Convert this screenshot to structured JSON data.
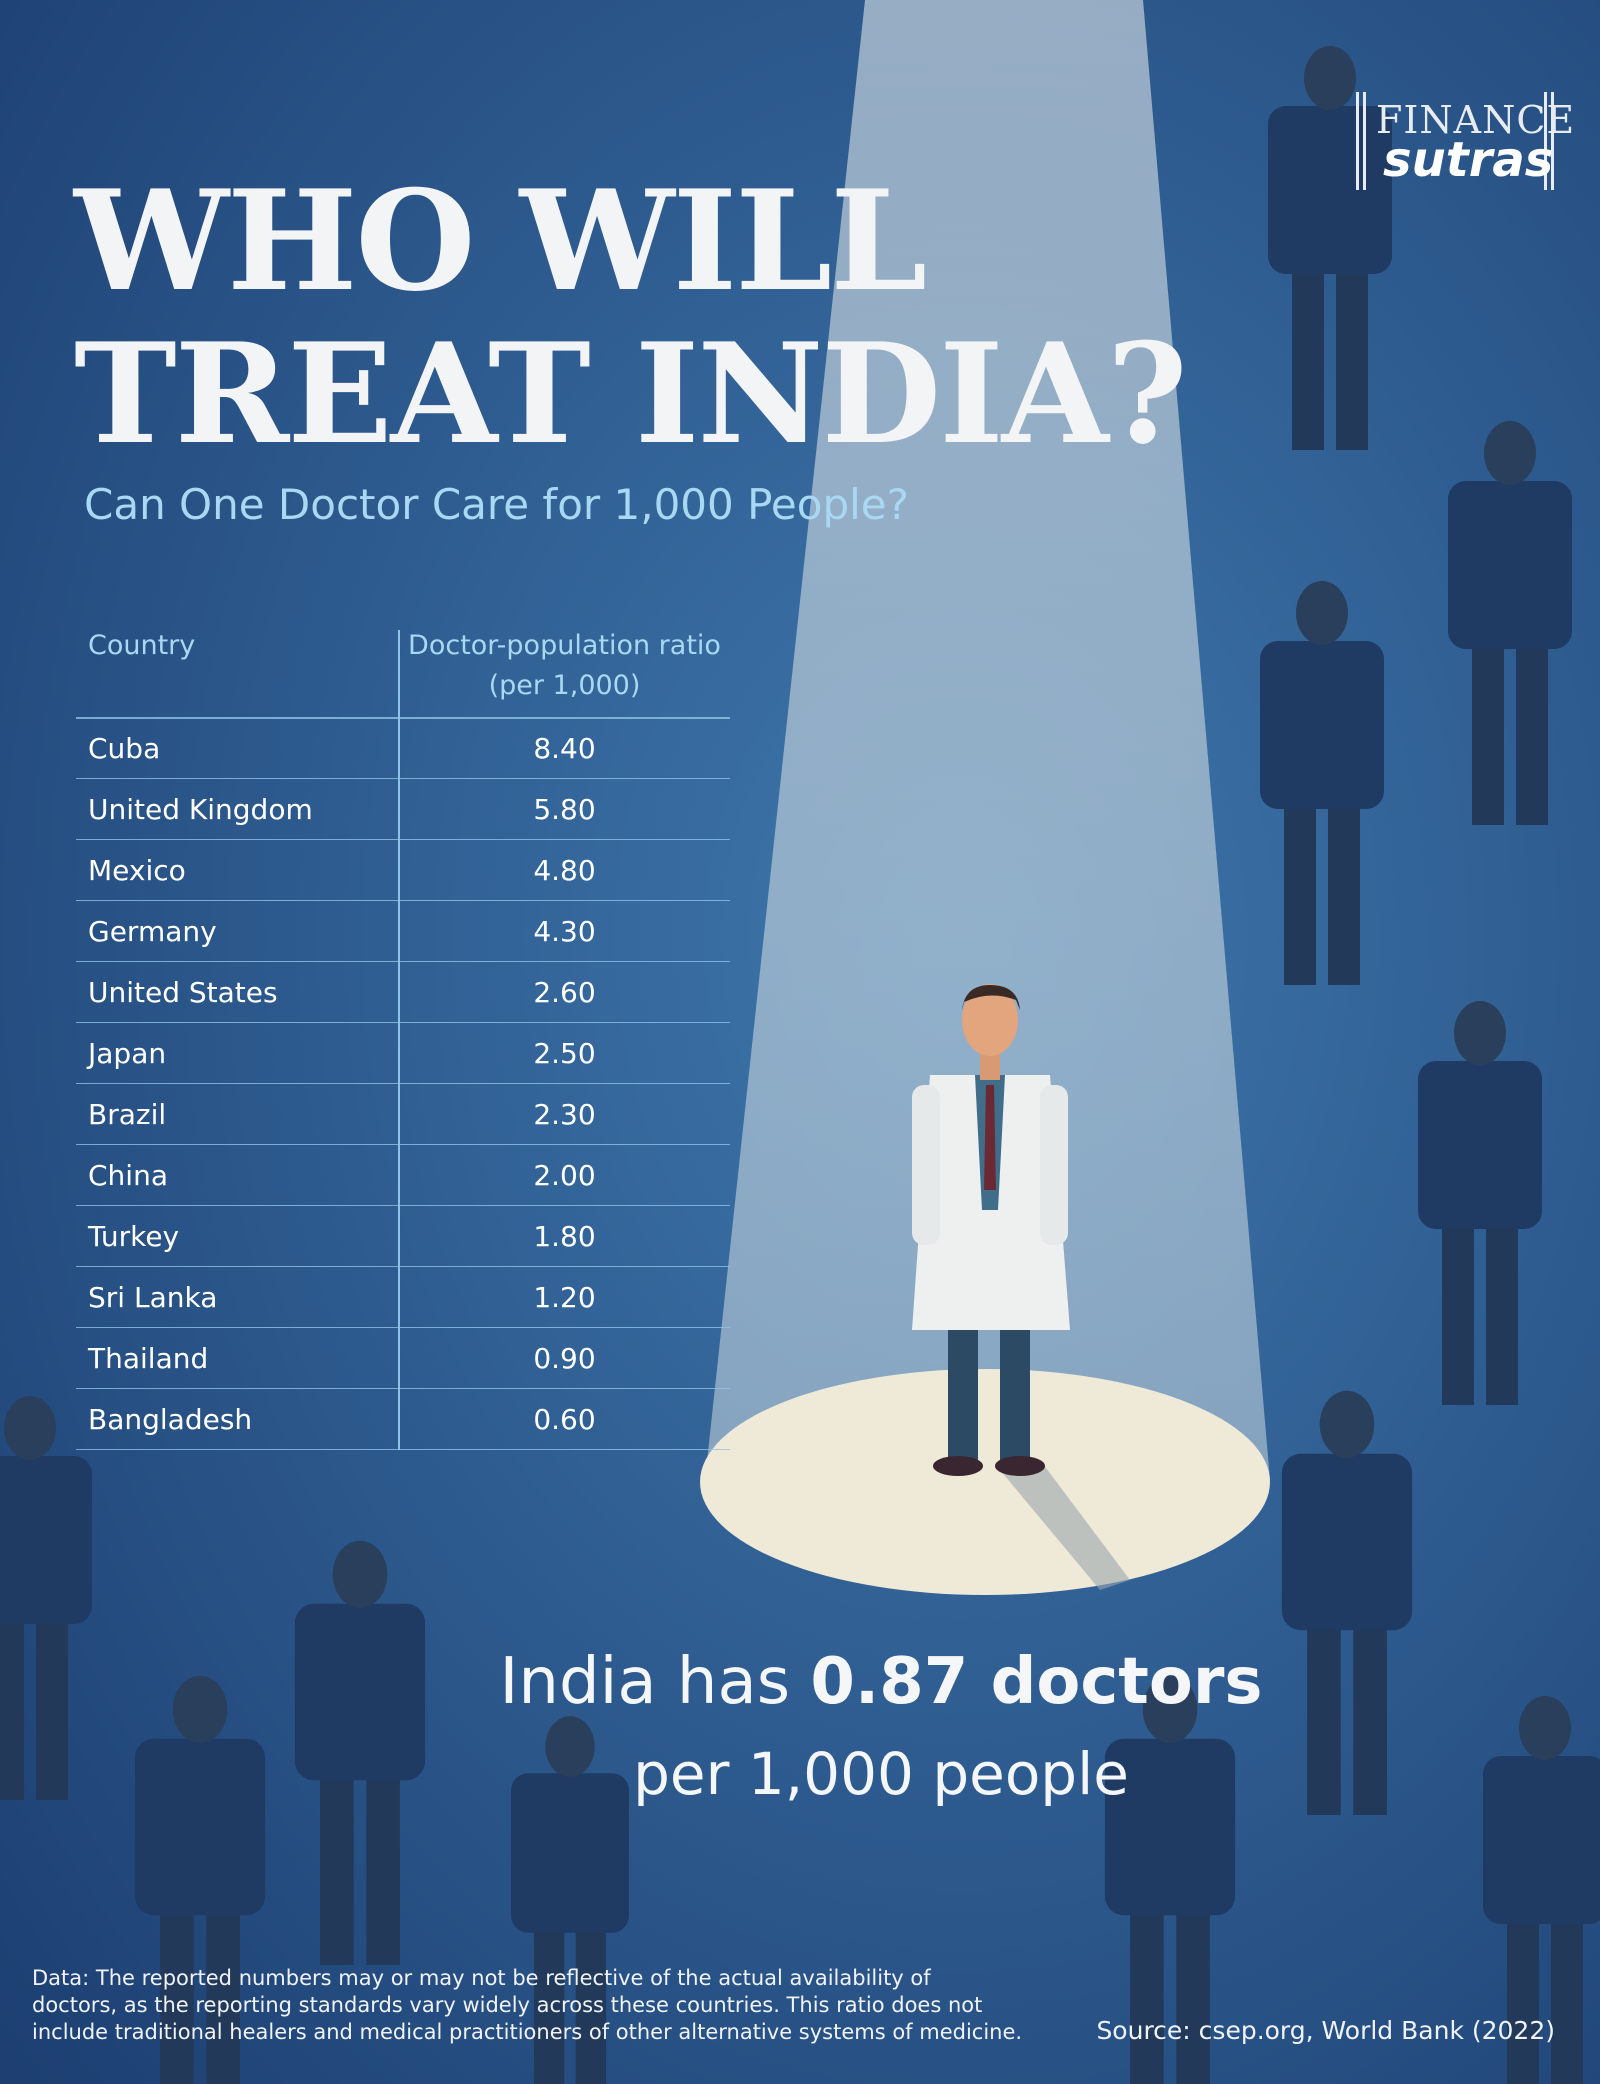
{
  "logo": {
    "line1": "FINANCE",
    "line2": "sutras"
  },
  "header": {
    "title_lines": [
      "WHO WILL",
      "TREAT INDIA?"
    ],
    "subtitle": "Can One Doctor Care for 1,000 People?"
  },
  "table": {
    "headers": {
      "country": "Country",
      "ratio_line1": "Doctor-population ratio",
      "ratio_line2": "(per 1,000)"
    },
    "rows": [
      [
        "Cuba",
        "8.40"
      ],
      [
        "United Kingdom",
        "5.80"
      ],
      [
        "Mexico",
        "4.80"
      ],
      [
        "Germany",
        "4.30"
      ],
      [
        "United States",
        "2.60"
      ],
      [
        "Japan",
        "2.50"
      ],
      [
        "Brazil",
        "2.30"
      ],
      [
        "China",
        "2.00"
      ],
      [
        "Turkey",
        "1.80"
      ],
      [
        "Sri Lanka",
        "1.20"
      ],
      [
        "Thailand",
        "0.90"
      ],
      [
        "Bangladesh",
        "0.60"
      ]
    ]
  },
  "callout": {
    "prefix": "India has",
    "highlight": "0.87 doctors",
    "line2": "per 1,000 people"
  },
  "footnote": {
    "lines": [
      "Data: The reported numbers may or may not be reflective of the actual availability of",
      "doctors, as the reporting standards vary widely across these countries. This ratio does not",
      "include traditional healers and medical practitioners of other alternative systems of medicine."
    ]
  },
  "source": "Source: csep.org, World Bank (2022)"
}
